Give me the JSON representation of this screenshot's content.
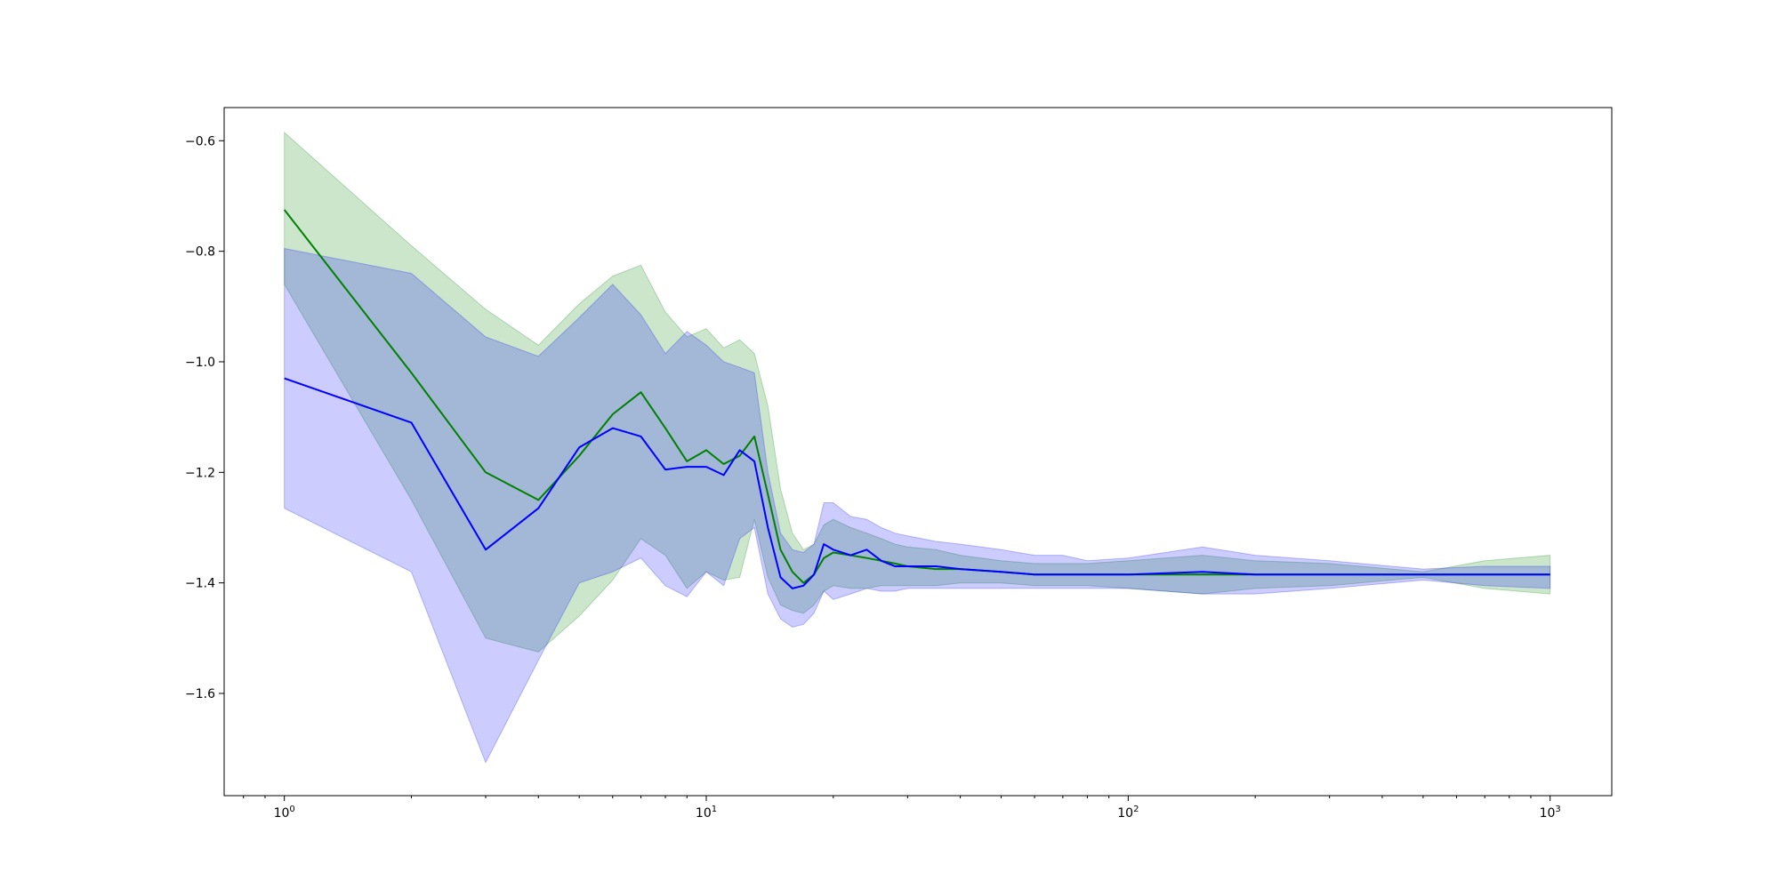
{
  "chart_data": {
    "type": "line",
    "title": "",
    "xlabel": "",
    "ylabel": "",
    "xscale": "log",
    "xlim": [
      0.72,
      1400
    ],
    "ylim": [
      -1.785,
      -0.54
    ],
    "grid": false,
    "legend": "none",
    "x_ticks": [
      {
        "value": 1,
        "base": "10",
        "exp": "0"
      },
      {
        "value": 10,
        "base": "10",
        "exp": "1"
      },
      {
        "value": 100,
        "base": "10",
        "exp": "2"
      },
      {
        "value": 1000,
        "base": "10",
        "exp": "3"
      }
    ],
    "y_ticks": [
      {
        "value": -0.6,
        "label": "−0.6"
      },
      {
        "value": -0.8,
        "label": "−0.8"
      },
      {
        "value": -1.0,
        "label": "−1.0"
      },
      {
        "value": -1.2,
        "label": "−1.2"
      },
      {
        "value": -1.4,
        "label": "−1.4"
      },
      {
        "value": -1.6,
        "label": "−1.6"
      }
    ],
    "series": [
      {
        "color": "#008000",
        "band_color": "#008000",
        "band_opacity": 0.2,
        "x": [
          1,
          2,
          3,
          4,
          5,
          6,
          7,
          8,
          9,
          10,
          11,
          12,
          13,
          14,
          15,
          16,
          17,
          18,
          19,
          20,
          22,
          24,
          26,
          28,
          30,
          35,
          40,
          50,
          60,
          70,
          80,
          100,
          150,
          200,
          300,
          500,
          700,
          1000
        ],
        "y": [
          -0.725,
          -1.02,
          -1.2,
          -1.25,
          -1.17,
          -1.095,
          -1.055,
          -1.12,
          -1.18,
          -1.16,
          -1.185,
          -1.17,
          -1.135,
          -1.24,
          -1.34,
          -1.38,
          -1.4,
          -1.385,
          -1.355,
          -1.345,
          -1.35,
          -1.355,
          -1.36,
          -1.365,
          -1.37,
          -1.375,
          -1.375,
          -1.38,
          -1.385,
          -1.385,
          -1.385,
          -1.385,
          -1.385,
          -1.385,
          -1.385,
          -1.385,
          -1.385,
          -1.385
        ],
        "upper": [
          -0.585,
          -0.79,
          -0.905,
          -0.97,
          -0.895,
          -0.845,
          -0.825,
          -0.91,
          -0.955,
          -0.94,
          -0.975,
          -0.96,
          -0.985,
          -1.08,
          -1.23,
          -1.31,
          -1.34,
          -1.33,
          -1.295,
          -1.285,
          -1.3,
          -1.31,
          -1.32,
          -1.33,
          -1.335,
          -1.34,
          -1.35,
          -1.36,
          -1.365,
          -1.365,
          -1.365,
          -1.36,
          -1.35,
          -1.36,
          -1.365,
          -1.38,
          -1.36,
          -1.35
        ],
        "lower": [
          -0.86,
          -1.25,
          -1.5,
          -1.525,
          -1.46,
          -1.395,
          -1.32,
          -1.35,
          -1.41,
          -1.38,
          -1.395,
          -1.39,
          -1.285,
          -1.39,
          -1.44,
          -1.45,
          -1.455,
          -1.44,
          -1.415,
          -1.405,
          -1.41,
          -1.41,
          -1.405,
          -1.405,
          -1.405,
          -1.405,
          -1.4,
          -1.4,
          -1.405,
          -1.405,
          -1.405,
          -1.41,
          -1.42,
          -1.41,
          -1.405,
          -1.39,
          -1.41,
          -1.42
        ]
      },
      {
        "color": "#0000ff",
        "band_color": "#0000ff",
        "band_opacity": 0.2,
        "x": [
          1,
          2,
          3,
          4,
          5,
          6,
          7,
          8,
          9,
          10,
          11,
          12,
          13,
          14,
          15,
          16,
          17,
          18,
          19,
          20,
          22,
          24,
          26,
          28,
          30,
          35,
          40,
          50,
          60,
          70,
          80,
          100,
          150,
          200,
          300,
          500,
          700,
          1000
        ],
        "y": [
          -1.03,
          -1.11,
          -1.34,
          -1.265,
          -1.155,
          -1.12,
          -1.135,
          -1.195,
          -1.19,
          -1.19,
          -1.205,
          -1.16,
          -1.18,
          -1.3,
          -1.39,
          -1.41,
          -1.405,
          -1.385,
          -1.33,
          -1.34,
          -1.35,
          -1.34,
          -1.36,
          -1.37,
          -1.37,
          -1.37,
          -1.375,
          -1.38,
          -1.385,
          -1.385,
          -1.385,
          -1.385,
          -1.38,
          -1.385,
          -1.385,
          -1.385,
          -1.385,
          -1.385
        ],
        "upper": [
          -0.795,
          -0.84,
          -0.955,
          -0.99,
          -0.92,
          -0.86,
          -0.915,
          -0.985,
          -0.945,
          -0.97,
          -1.0,
          -1.01,
          -1.02,
          -1.2,
          -1.31,
          -1.34,
          -1.345,
          -1.33,
          -1.255,
          -1.255,
          -1.28,
          -1.285,
          -1.3,
          -1.31,
          -1.315,
          -1.325,
          -1.33,
          -1.34,
          -1.35,
          -1.35,
          -1.36,
          -1.355,
          -1.335,
          -1.35,
          -1.36,
          -1.375,
          -1.37,
          -1.37
        ],
        "lower": [
          -1.265,
          -1.38,
          -1.725,
          -1.54,
          -1.4,
          -1.38,
          -1.355,
          -1.405,
          -1.425,
          -1.38,
          -1.405,
          -1.32,
          -1.3,
          -1.42,
          -1.465,
          -1.48,
          -1.475,
          -1.455,
          -1.415,
          -1.43,
          -1.42,
          -1.41,
          -1.415,
          -1.415,
          -1.41,
          -1.41,
          -1.41,
          -1.41,
          -1.41,
          -1.41,
          -1.41,
          -1.41,
          -1.42,
          -1.42,
          -1.41,
          -1.395,
          -1.405,
          -1.41
        ]
      }
    ]
  }
}
